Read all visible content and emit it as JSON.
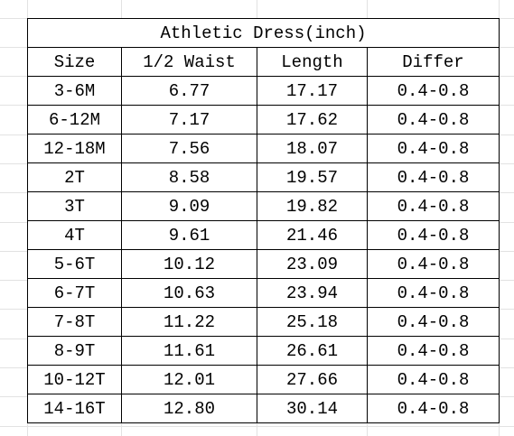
{
  "table": {
    "title": "Athletic Dress(inch)",
    "header": [
      "Size",
      "1/2 Waist",
      "Length",
      "Differ"
    ],
    "rows": [
      [
        "3-6M",
        "6.77",
        "17.17",
        "0.4-0.8"
      ],
      [
        "6-12M",
        "7.17",
        "17.62",
        "0.4-0.8"
      ],
      [
        "12-18M",
        "7.56",
        "18.07",
        "0.4-0.8"
      ],
      [
        "2T",
        "8.58",
        "19.57",
        "0.4-0.8"
      ],
      [
        "3T",
        "9.09",
        "19.82",
        "0.4-0.8"
      ],
      [
        "4T",
        "9.61",
        "21.46",
        "0.4-0.8"
      ],
      [
        "5-6T",
        "10.12",
        "23.09",
        "0.4-0.8"
      ],
      [
        "6-7T",
        "10.63",
        "23.94",
        "0.4-0.8"
      ],
      [
        "7-8T",
        "11.22",
        "25.18",
        "0.4-0.8"
      ],
      [
        "8-9T",
        "11.61",
        "26.61",
        "0.4-0.8"
      ],
      [
        "10-12T",
        "12.01",
        "27.66",
        "0.4-0.8"
      ],
      [
        "14-16T",
        "12.80",
        "30.14",
        "0.4-0.8"
      ]
    ]
  }
}
